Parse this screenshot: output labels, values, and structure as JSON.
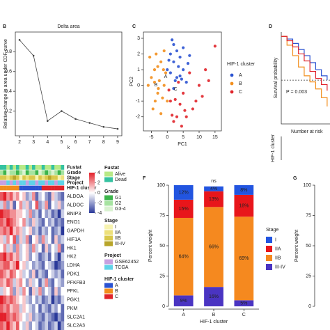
{
  "chart_data": [
    {
      "type": "line",
      "panel": "B",
      "title": "Delta area",
      "xlabel": "k",
      "ylabel": "Relative change in area under CDF curve",
      "x": [
        2,
        3,
        4,
        5,
        6,
        7,
        8,
        9
      ],
      "values": [
        0.92,
        0.76,
        0.1,
        0.2,
        0.12,
        0.08,
        0.04,
        0.02
      ],
      "xlim": [
        1.7,
        9.3
      ],
      "xticks": [
        2,
        3,
        4,
        5,
        6,
        7,
        8,
        9
      ],
      "ylim": [
        -0.05,
        1.0
      ],
      "yticks": [
        0.2,
        0.4,
        0.6,
        0.8
      ],
      "color": "#444444"
    },
    {
      "type": "scatter",
      "panel": "C",
      "xlabel": "PC1",
      "ylabel": "PC2",
      "legend_title": "HIF-1 cluster",
      "xlim": [
        -7.5,
        17
      ],
      "xticks": [
        -5,
        0,
        5,
        10,
        15
      ],
      "ylim": [
        -2.9,
        3.4
      ],
      "yticks": [
        -2,
        -1,
        0,
        1,
        2,
        3
      ],
      "series": [
        {
          "name": "A",
          "color": "#2a52d1",
          "x": [
            0,
            1,
            2,
            3,
            4,
            5,
            6,
            2,
            3,
            1,
            4,
            5,
            0.5,
            2.5,
            3.5,
            6.5,
            1.5,
            4.5,
            7,
            2
          ],
          "y": [
            1,
            2,
            1.5,
            0.5,
            1.8,
            1,
            0.2,
            2.6,
            2.2,
            0.8,
            0.6,
            2.4,
            1.6,
            0.3,
            1.2,
            1.4,
            2.9,
            0.4,
            1.9,
            -0.2
          ]
        },
        {
          "name": "B",
          "color": "#f28e1c",
          "x": [
            -5,
            -4,
            -3,
            -2,
            -1,
            0,
            -4.5,
            -3.5,
            -2.5,
            -1.5,
            -6,
            -5.5,
            -3,
            -2,
            -1,
            -4,
            -0.5,
            -2.8,
            -1.2,
            -3.8
          ],
          "y": [
            0.5,
            1,
            -0.5,
            1.5,
            0,
            -1,
            -1.5,
            2,
            0.3,
            -0.8,
            0,
            1.8,
            1.2,
            -1.8,
            2.2,
            0.2,
            0.8,
            -0.2,
            1,
            -1
          ]
        },
        {
          "name": "C",
          "color": "#e0242a",
          "x": [
            1,
            3,
            5,
            8,
            10,
            15,
            2,
            4,
            6,
            12,
            0.5,
            7,
            9,
            3.5,
            5.5,
            1.5,
            11,
            2.5,
            13,
            4.5
          ],
          "y": [
            -1,
            -2,
            -0.5,
            -1.5,
            0,
            2.5,
            -2.3,
            -1.2,
            -2,
            1,
            -0.3,
            0.8,
            -1,
            0.2,
            -1.6,
            -1.9,
            -0.7,
            -0.9,
            0.3,
            -2.6
          ]
        }
      ]
    },
    {
      "type": "survival",
      "panel": "D",
      "ylabel": "Survival probability",
      "annotation": "P = 0.003",
      "risk_title": "Number at risk",
      "risk_ylabel": "HIF-1 cluster",
      "xlim": [
        0,
        17
      ],
      "ylim": [
        0,
        1.05
      ],
      "median_line": 0.5,
      "series": [
        {
          "color": "#2a52d1",
          "x": [
            0,
            2,
            4,
            6,
            8,
            10,
            12,
            14,
            16
          ],
          "values": [
            1,
            0.97,
            0.92,
            0.85,
            0.78,
            0.7,
            0.62,
            0.55,
            0.5
          ]
        },
        {
          "color": "#f28e1c",
          "x": [
            0,
            2,
            4,
            6,
            8,
            10,
            12,
            14,
            16
          ],
          "values": [
            1,
            0.9,
            0.78,
            0.65,
            0.55,
            0.48,
            0.4,
            0.3,
            0.2
          ]
        },
        {
          "color": "#e0242a",
          "x": [
            0,
            2,
            4,
            6,
            8,
            10,
            12,
            14,
            16
          ],
          "values": [
            1,
            0.95,
            0.88,
            0.8,
            0.72,
            0.6,
            0.52,
            0.45,
            0.38
          ]
        }
      ]
    },
    {
      "type": "heatmap",
      "genes": [
        "ALDOA",
        "ALDOC",
        "BNIP3",
        "ENO1",
        "GAPDH",
        "HIF1A",
        "HK1",
        "HK2",
        "LDHA",
        "PDK1",
        "PFKFB3",
        "PFKL",
        "PGK1",
        "PKM",
        "SLC2A1",
        "SLC2A3"
      ],
      "matrix": [
        [
          3,
          4,
          2,
          3,
          1,
          2,
          0,
          1,
          -2,
          -1,
          2,
          -3,
          -1,
          0,
          -2,
          -3,
          1,
          -1,
          -2,
          -3
        ],
        [
          -1,
          2,
          -2,
          1,
          -3,
          0,
          2,
          -1,
          1,
          -2,
          0,
          3,
          -2,
          -1,
          2,
          -3,
          0,
          -1,
          1,
          -2
        ],
        [
          4,
          3,
          3,
          2,
          2,
          1,
          1,
          0,
          -1,
          2,
          -2,
          -1,
          -3,
          0,
          -2,
          -1,
          -3,
          -2,
          -4,
          -1
        ],
        [
          3,
          2,
          4,
          3,
          2,
          1,
          0,
          2,
          -1,
          -2,
          1,
          -1,
          -2,
          -3,
          0,
          -2,
          -1,
          -3,
          -2,
          -3
        ],
        [
          2,
          3,
          2,
          4,
          1,
          2,
          1,
          -1,
          0,
          1,
          -2,
          -1,
          -3,
          -1,
          -2,
          0,
          -3,
          -2,
          -1,
          -4
        ],
        [
          1,
          -1,
          2,
          0,
          3,
          -2,
          1,
          -1,
          2,
          -3,
          0,
          1,
          -2,
          2,
          -1,
          0,
          -3,
          1,
          -2,
          -1
        ],
        [
          0,
          2,
          -1,
          1,
          -2,
          2,
          -1,
          0,
          1,
          -2,
          2,
          -1,
          0,
          -3,
          1,
          -2,
          0,
          -1,
          2,
          -3
        ],
        [
          3,
          4,
          2,
          3,
          1,
          2,
          -1,
          0,
          1,
          -2,
          0,
          -1,
          -3,
          -2,
          -1,
          -3,
          0,
          -2,
          -4,
          -1
        ],
        [
          2,
          3,
          3,
          1,
          2,
          4,
          0,
          1,
          -1,
          0,
          -2,
          -1,
          -2,
          -3,
          0,
          -1,
          -2,
          -4,
          -3,
          -2
        ],
        [
          3,
          2,
          1,
          3,
          2,
          0,
          1,
          -1,
          0,
          -2,
          1,
          -3,
          -1,
          -2,
          -3,
          0,
          -1,
          -2,
          -1,
          -3
        ],
        [
          2,
          1,
          3,
          2,
          -1,
          1,
          2,
          0,
          -2,
          1,
          -1,
          0,
          -3,
          -1,
          2,
          -2,
          -3,
          0,
          -1,
          -2
        ],
        [
          -1,
          1,
          0,
          2,
          -2,
          1,
          -1,
          2,
          0,
          -3,
          1,
          -1,
          2,
          -2,
          0,
          -1,
          -3,
          1,
          -2,
          0
        ],
        [
          4,
          3,
          2,
          3,
          2,
          1,
          0,
          1,
          -1,
          -2,
          0,
          -2,
          -1,
          -3,
          -2,
          -1,
          -4,
          -2,
          -3,
          -1
        ],
        [
          3,
          2,
          3,
          1,
          2,
          2,
          -1,
          1,
          0,
          -1,
          -2,
          0,
          -3,
          -1,
          -2,
          -3,
          -1,
          -2,
          0,
          -3
        ],
        [
          4,
          4,
          3,
          2,
          3,
          2,
          1,
          0,
          -1,
          1,
          -2,
          -1,
          -2,
          -3,
          -1,
          -2,
          -3,
          -4,
          -2,
          -3
        ],
        [
          3,
          2,
          4,
          2,
          1,
          3,
          0,
          -1,
          1,
          -2,
          0,
          -1,
          -3,
          -2,
          -1,
          -3,
          -2,
          -1,
          -4,
          -2
        ]
      ],
      "scale_lim": [
        -4,
        4
      ],
      "scale_ticks": [
        4,
        2,
        0,
        -2,
        -4
      ],
      "scale_colors": [
        "#2b3a9a",
        "#ffffff",
        "#e3202a"
      ],
      "tracks": [
        {
          "name": "Fustat",
          "values": [
            "Dead",
            "Dead",
            "Alive",
            "Dead",
            "Alive",
            "Dead",
            "Alive",
            "Alive",
            "Dead",
            "Alive",
            "Dead",
            "Alive",
            "Alive",
            "Dead",
            "Alive",
            "Alive",
            "Dead",
            "Alive",
            "Alive",
            "Dead"
          ]
        },
        {
          "name": "Grade",
          "values": [
            "G2",
            "G1",
            "G3-4",
            "G2",
            "G2",
            "G1",
            "G2",
            "G3-4",
            "G1",
            "G2",
            "G2",
            "G1",
            "G3-4",
            "G2",
            "G1",
            "G2",
            "G3-4",
            "G2",
            "G1",
            "G2"
          ]
        },
        {
          "name": "Stage",
          "values": [
            "IIB",
            "IIB",
            "IIA",
            "IIB",
            "III-IV",
            "IIB",
            "I",
            "IIB",
            "IIA",
            "IIB",
            "IIB",
            "I",
            "IIB",
            "IIA",
            "IIB",
            "III-IV",
            "IIB",
            "IIB",
            "I",
            "IIA"
          ]
        },
        {
          "name": "Project",
          "values": [
            "GSE62452",
            "GSE62452",
            "TCGA",
            "GSE62452",
            "TCGA",
            "GSE62452",
            "TCGA",
            "TCGA",
            "GSE62452",
            "TCGA",
            "TCGA",
            "GSE62452",
            "TCGA",
            "TCGA",
            "GSE62452",
            "TCGA",
            "TCGA",
            "GSE62452",
            "TCGA",
            "TCGA"
          ]
        },
        {
          "name": "HIF-1 cluster",
          "values": [
            "B",
            "B",
            "B",
            "B",
            "B",
            "B",
            "A",
            "A",
            "A",
            "A",
            "A",
            "A",
            "A",
            "C",
            "C",
            "C",
            "C",
            "C",
            "C",
            "C"
          ]
        }
      ],
      "legends": [
        {
          "title": "Fustat",
          "names": [
            "Alive",
            "Dead"
          ],
          "colors": [
            "#b8e986",
            "#34c2a0"
          ]
        },
        {
          "title": "Grade",
          "names": [
            "G1",
            "G2",
            "G3-4"
          ],
          "colors": [
            "#3cb44b",
            "#a6e3a0",
            "#d9f2d0"
          ]
        },
        {
          "title": "Stage",
          "names": [
            "I",
            "IIA",
            "IIB",
            "III-IV"
          ],
          "colors": [
            "#f7f3b0",
            "#ede07a",
            "#d9c84a",
            "#b8a52a"
          ]
        },
        {
          "title": "Project",
          "names": [
            "GSE62452",
            "TCGA"
          ],
          "colors": [
            "#c7a0e0",
            "#5fd3e8"
          ]
        },
        {
          "title": "HIF-1 cluster",
          "names": [
            "A",
            "B",
            "C"
          ],
          "colors": [
            "#2a52d1",
            "#f28e1c",
            "#e0242a"
          ]
        }
      ]
    },
    {
      "type": "bar",
      "panel": "F",
      "title": "ns",
      "ylabel": "Percent weight",
      "xlabel": "HIF-1 cluster",
      "legend_title": "Stage",
      "categories": [
        "A",
        "B",
        "C"
      ],
      "ylim": [
        0,
        100
      ],
      "yticks": [
        0,
        25,
        50,
        75,
        100
      ],
      "series": [
        {
          "name": "I",
          "color": "#2255e0",
          "values": [
            12,
            4,
            8
          ],
          "value_labels": [
            "12%",
            "4%",
            "8%"
          ]
        },
        {
          "name": "IIA",
          "color": "#e8161b",
          "values": [
            15,
            13,
            18
          ],
          "value_labels": [
            "15%",
            "13%",
            "18%"
          ]
        },
        {
          "name": "IIB",
          "color": "#f5891f",
          "values": [
            64,
            66,
            69
          ],
          "value_labels": [
            "64%",
            "66%",
            "69%"
          ]
        },
        {
          "name": "III-IV",
          "color": "#4a34c2",
          "values": [
            9,
            16,
            5
          ],
          "value_labels": [
            "9%",
            "16%",
            "5%"
          ]
        }
      ]
    },
    {
      "type": "bar",
      "panel": "G",
      "ylabel": "Percent weight",
      "ylim": [
        0,
        100
      ],
      "yticks": [
        0,
        25,
        50,
        75,
        100
      ]
    }
  ]
}
